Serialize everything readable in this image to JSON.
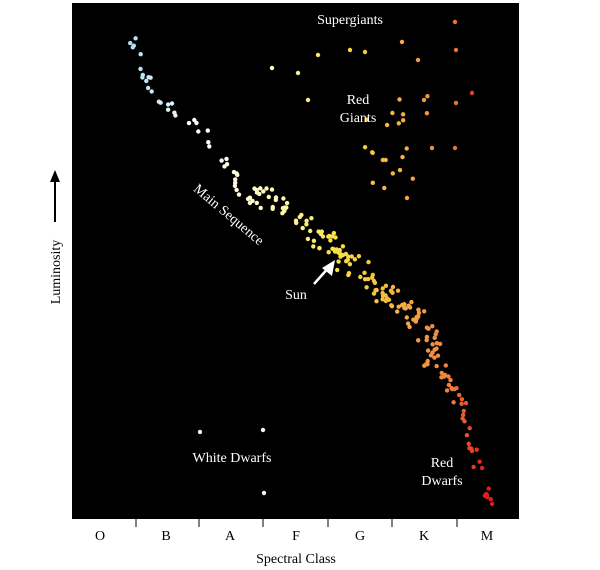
{
  "annotations": {
    "supergiants": "Supergiants",
    "red_giants": [
      "Red",
      "Giants"
    ],
    "main_sequence": "Main Sequence",
    "sun": "Sun",
    "white_dwarfs": "White Dwarfs",
    "red_dwarfs": [
      "Red",
      "Dwarfs"
    ]
  },
  "axes": {
    "y_label": "Luminosity",
    "x_label": "Spectral Class",
    "classes": [
      "O",
      "B",
      "A",
      "F",
      "G",
      "K",
      "M"
    ]
  }
}
